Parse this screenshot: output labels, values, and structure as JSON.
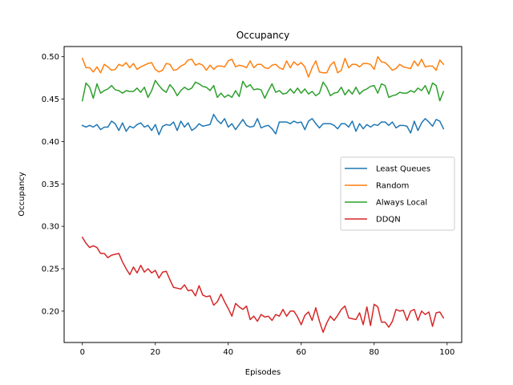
{
  "chart_data": {
    "type": "line",
    "title": "Occupancy",
    "xlabel": "Episodes",
    "ylabel": "Occupancy",
    "xlim": [
      -5,
      104
    ],
    "ylim": [
      0.163,
      0.512
    ],
    "xticks": [
      0,
      20,
      40,
      60,
      80,
      100
    ],
    "xtick_labels": [
      "0",
      "20",
      "40",
      "60",
      "80",
      "100"
    ],
    "yticks": [
      0.2,
      0.25,
      0.3,
      0.35,
      0.4,
      0.45,
      0.5
    ],
    "ytick_labels": [
      "0.20",
      "0.25",
      "0.30",
      "0.35",
      "0.40",
      "0.45",
      "0.50"
    ],
    "grid": false,
    "legend_position": "center-right",
    "x": [
      0,
      1,
      2,
      3,
      4,
      5,
      6,
      7,
      8,
      9,
      10,
      11,
      12,
      13,
      14,
      15,
      16,
      17,
      18,
      19,
      20,
      21,
      22,
      23,
      24,
      25,
      26,
      27,
      28,
      29,
      30,
      31,
      32,
      33,
      34,
      35,
      36,
      37,
      38,
      39,
      40,
      41,
      42,
      43,
      44,
      45,
      46,
      47,
      48,
      49,
      50,
      51,
      52,
      53,
      54,
      55,
      56,
      57,
      58,
      59,
      60,
      61,
      62,
      63,
      64,
      65,
      66,
      67,
      68,
      69,
      70,
      71,
      72,
      73,
      74,
      75,
      76,
      77,
      78,
      79,
      80,
      81,
      82,
      83,
      84,
      85,
      86,
      87,
      88,
      89,
      90,
      91,
      92,
      93,
      94,
      95,
      96,
      97,
      98,
      99
    ],
    "series": [
      {
        "name": "Least Queues",
        "color": "#1f77b4",
        "values": [
          0.419,
          0.417,
          0.419,
          0.417,
          0.42,
          0.414,
          0.417,
          0.417,
          0.424,
          0.421,
          0.413,
          0.422,
          0.412,
          0.418,
          0.416,
          0.42,
          0.422,
          0.417,
          0.419,
          0.413,
          0.42,
          0.408,
          0.418,
          0.42,
          0.419,
          0.423,
          0.413,
          0.424,
          0.417,
          0.422,
          0.413,
          0.416,
          0.421,
          0.418,
          0.419,
          0.42,
          0.432,
          0.425,
          0.421,
          0.427,
          0.417,
          0.421,
          0.414,
          0.42,
          0.426,
          0.419,
          0.417,
          0.418,
          0.427,
          0.416,
          0.418,
          0.419,
          0.415,
          0.409,
          0.423,
          0.423,
          0.423,
          0.421,
          0.424,
          0.422,
          0.423,
          0.414,
          0.424,
          0.427,
          0.421,
          0.416,
          0.421,
          0.421,
          0.421,
          0.419,
          0.415,
          0.421,
          0.421,
          0.417,
          0.424,
          0.412,
          0.421,
          0.415,
          0.42,
          0.417,
          0.42,
          0.419,
          0.423,
          0.423,
          0.419,
          0.423,
          0.416,
          0.419,
          0.419,
          0.418,
          0.41,
          0.424,
          0.413,
          0.422,
          0.427,
          0.423,
          0.418,
          0.426,
          0.424,
          0.415
        ]
      },
      {
        "name": "Random",
        "color": "#ff7f0e",
        "values": [
          0.498,
          0.487,
          0.487,
          0.482,
          0.488,
          0.481,
          0.491,
          0.488,
          0.484,
          0.485,
          0.491,
          0.489,
          0.493,
          0.487,
          0.492,
          0.485,
          0.488,
          0.49,
          0.492,
          0.493,
          0.485,
          0.482,
          0.484,
          0.492,
          0.491,
          0.484,
          0.485,
          0.489,
          0.491,
          0.496,
          0.497,
          0.49,
          0.492,
          0.49,
          0.484,
          0.49,
          0.485,
          0.489,
          0.489,
          0.488,
          0.495,
          0.497,
          0.488,
          0.49,
          0.489,
          0.487,
          0.495,
          0.487,
          0.491,
          0.491,
          0.487,
          0.486,
          0.49,
          0.491,
          0.487,
          0.485,
          0.495,
          0.487,
          0.494,
          0.49,
          0.493,
          0.488,
          0.476,
          0.487,
          0.495,
          0.482,
          0.481,
          0.481,
          0.49,
          0.494,
          0.481,
          0.484,
          0.498,
          0.487,
          0.491,
          0.491,
          0.488,
          0.492,
          0.492,
          0.491,
          0.485,
          0.5,
          0.494,
          0.493,
          0.489,
          0.484,
          0.486,
          0.491,
          0.488,
          0.487,
          0.486,
          0.495,
          0.489,
          0.497,
          0.488,
          0.489,
          0.489,
          0.484,
          0.496,
          0.491
        ]
      },
      {
        "name": "Always Local",
        "color": "#2ca02c",
        "values": [
          0.448,
          0.469,
          0.464,
          0.451,
          0.468,
          0.457,
          0.46,
          0.462,
          0.466,
          0.461,
          0.46,
          0.457,
          0.46,
          0.459,
          0.459,
          0.463,
          0.458,
          0.464,
          0.452,
          0.46,
          0.472,
          0.466,
          0.461,
          0.458,
          0.467,
          0.462,
          0.454,
          0.46,
          0.464,
          0.461,
          0.463,
          0.47,
          0.468,
          0.465,
          0.464,
          0.46,
          0.466,
          0.452,
          0.457,
          0.452,
          0.455,
          0.452,
          0.46,
          0.453,
          0.471,
          0.464,
          0.467,
          0.461,
          0.462,
          0.461,
          0.451,
          0.46,
          0.468,
          0.458,
          0.46,
          0.456,
          0.457,
          0.462,
          0.457,
          0.463,
          0.457,
          0.462,
          0.456,
          0.459,
          0.454,
          0.457,
          0.47,
          0.464,
          0.454,
          0.457,
          0.458,
          0.464,
          0.455,
          0.461,
          0.456,
          0.464,
          0.456,
          0.46,
          0.462,
          0.465,
          0.466,
          0.457,
          0.468,
          0.466,
          0.452,
          0.454,
          0.455,
          0.458,
          0.457,
          0.457,
          0.46,
          0.458,
          0.463,
          0.46,
          0.466,
          0.456,
          0.469,
          0.466,
          0.448,
          0.459
        ]
      },
      {
        "name": "DDQN",
        "color": "#d62728",
        "values": [
          0.287,
          0.28,
          0.275,
          0.277,
          0.275,
          0.268,
          0.268,
          0.263,
          0.266,
          0.267,
          0.268,
          0.258,
          0.25,
          0.243,
          0.252,
          0.245,
          0.254,
          0.246,
          0.25,
          0.245,
          0.248,
          0.239,
          0.246,
          0.247,
          0.237,
          0.228,
          0.227,
          0.226,
          0.231,
          0.224,
          0.225,
          0.218,
          0.23,
          0.219,
          0.217,
          0.218,
          0.207,
          0.211,
          0.22,
          0.211,
          0.203,
          0.194,
          0.209,
          0.205,
          0.202,
          0.206,
          0.19,
          0.194,
          0.188,
          0.196,
          0.193,
          0.194,
          0.189,
          0.196,
          0.194,
          0.202,
          0.194,
          0.2,
          0.2,
          0.193,
          0.184,
          0.195,
          0.199,
          0.189,
          0.204,
          0.188,
          0.175,
          0.186,
          0.194,
          0.189,
          0.195,
          0.202,
          0.206,
          0.192,
          0.191,
          0.19,
          0.198,
          0.184,
          0.205,
          0.183,
          0.208,
          0.205,
          0.187,
          0.187,
          0.181,
          0.188,
          0.202,
          0.2,
          0.201,
          0.189,
          0.2,
          0.202,
          0.189,
          0.2,
          0.196,
          0.199,
          0.182,
          0.198,
          0.199,
          0.192
        ]
      }
    ]
  }
}
